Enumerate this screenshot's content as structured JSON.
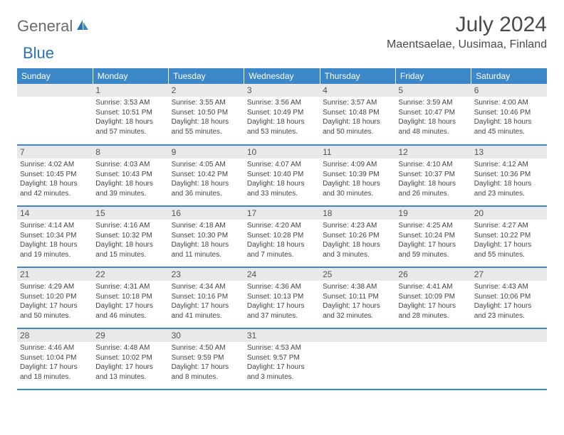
{
  "logo": {
    "gray": "General",
    "blue": "Blue"
  },
  "title": "July 2024",
  "location": "Maentsaelae, Uusimaa, Finland",
  "colors": {
    "header_bg": "#3b87c8",
    "header_text": "#ffffff",
    "daynum_bg": "#e9e9e9",
    "logo_gray": "#6a6a6a",
    "logo_blue": "#2a72b5"
  },
  "day_headers": [
    "Sunday",
    "Monday",
    "Tuesday",
    "Wednesday",
    "Thursday",
    "Friday",
    "Saturday"
  ],
  "weeks": [
    [
      {
        "n": "",
        "sr": "",
        "ss": "",
        "dl": ""
      },
      {
        "n": "1",
        "sr": "Sunrise: 3:53 AM",
        "ss": "Sunset: 10:51 PM",
        "dl": "Daylight: 18 hours and 57 minutes."
      },
      {
        "n": "2",
        "sr": "Sunrise: 3:55 AM",
        "ss": "Sunset: 10:50 PM",
        "dl": "Daylight: 18 hours and 55 minutes."
      },
      {
        "n": "3",
        "sr": "Sunrise: 3:56 AM",
        "ss": "Sunset: 10:49 PM",
        "dl": "Daylight: 18 hours and 53 minutes."
      },
      {
        "n": "4",
        "sr": "Sunrise: 3:57 AM",
        "ss": "Sunset: 10:48 PM",
        "dl": "Daylight: 18 hours and 50 minutes."
      },
      {
        "n": "5",
        "sr": "Sunrise: 3:59 AM",
        "ss": "Sunset: 10:47 PM",
        "dl": "Daylight: 18 hours and 48 minutes."
      },
      {
        "n": "6",
        "sr": "Sunrise: 4:00 AM",
        "ss": "Sunset: 10:46 PM",
        "dl": "Daylight: 18 hours and 45 minutes."
      }
    ],
    [
      {
        "n": "7",
        "sr": "Sunrise: 4:02 AM",
        "ss": "Sunset: 10:45 PM",
        "dl": "Daylight: 18 hours and 42 minutes."
      },
      {
        "n": "8",
        "sr": "Sunrise: 4:03 AM",
        "ss": "Sunset: 10:43 PM",
        "dl": "Daylight: 18 hours and 39 minutes."
      },
      {
        "n": "9",
        "sr": "Sunrise: 4:05 AM",
        "ss": "Sunset: 10:42 PM",
        "dl": "Daylight: 18 hours and 36 minutes."
      },
      {
        "n": "10",
        "sr": "Sunrise: 4:07 AM",
        "ss": "Sunset: 10:40 PM",
        "dl": "Daylight: 18 hours and 33 minutes."
      },
      {
        "n": "11",
        "sr": "Sunrise: 4:09 AM",
        "ss": "Sunset: 10:39 PM",
        "dl": "Daylight: 18 hours and 30 minutes."
      },
      {
        "n": "12",
        "sr": "Sunrise: 4:10 AM",
        "ss": "Sunset: 10:37 PM",
        "dl": "Daylight: 18 hours and 26 minutes."
      },
      {
        "n": "13",
        "sr": "Sunrise: 4:12 AM",
        "ss": "Sunset: 10:36 PM",
        "dl": "Daylight: 18 hours and 23 minutes."
      }
    ],
    [
      {
        "n": "14",
        "sr": "Sunrise: 4:14 AM",
        "ss": "Sunset: 10:34 PM",
        "dl": "Daylight: 18 hours and 19 minutes."
      },
      {
        "n": "15",
        "sr": "Sunrise: 4:16 AM",
        "ss": "Sunset: 10:32 PM",
        "dl": "Daylight: 18 hours and 15 minutes."
      },
      {
        "n": "16",
        "sr": "Sunrise: 4:18 AM",
        "ss": "Sunset: 10:30 PM",
        "dl": "Daylight: 18 hours and 11 minutes."
      },
      {
        "n": "17",
        "sr": "Sunrise: 4:20 AM",
        "ss": "Sunset: 10:28 PM",
        "dl": "Daylight: 18 hours and 7 minutes."
      },
      {
        "n": "18",
        "sr": "Sunrise: 4:23 AM",
        "ss": "Sunset: 10:26 PM",
        "dl": "Daylight: 18 hours and 3 minutes."
      },
      {
        "n": "19",
        "sr": "Sunrise: 4:25 AM",
        "ss": "Sunset: 10:24 PM",
        "dl": "Daylight: 17 hours and 59 minutes."
      },
      {
        "n": "20",
        "sr": "Sunrise: 4:27 AM",
        "ss": "Sunset: 10:22 PM",
        "dl": "Daylight: 17 hours and 55 minutes."
      }
    ],
    [
      {
        "n": "21",
        "sr": "Sunrise: 4:29 AM",
        "ss": "Sunset: 10:20 PM",
        "dl": "Daylight: 17 hours and 50 minutes."
      },
      {
        "n": "22",
        "sr": "Sunrise: 4:31 AM",
        "ss": "Sunset: 10:18 PM",
        "dl": "Daylight: 17 hours and 46 minutes."
      },
      {
        "n": "23",
        "sr": "Sunrise: 4:34 AM",
        "ss": "Sunset: 10:16 PM",
        "dl": "Daylight: 17 hours and 41 minutes."
      },
      {
        "n": "24",
        "sr": "Sunrise: 4:36 AM",
        "ss": "Sunset: 10:13 PM",
        "dl": "Daylight: 17 hours and 37 minutes."
      },
      {
        "n": "25",
        "sr": "Sunrise: 4:38 AM",
        "ss": "Sunset: 10:11 PM",
        "dl": "Daylight: 17 hours and 32 minutes."
      },
      {
        "n": "26",
        "sr": "Sunrise: 4:41 AM",
        "ss": "Sunset: 10:09 PM",
        "dl": "Daylight: 17 hours and 28 minutes."
      },
      {
        "n": "27",
        "sr": "Sunrise: 4:43 AM",
        "ss": "Sunset: 10:06 PM",
        "dl": "Daylight: 17 hours and 23 minutes."
      }
    ],
    [
      {
        "n": "28",
        "sr": "Sunrise: 4:46 AM",
        "ss": "Sunset: 10:04 PM",
        "dl": "Daylight: 17 hours and 18 minutes."
      },
      {
        "n": "29",
        "sr": "Sunrise: 4:48 AM",
        "ss": "Sunset: 10:02 PM",
        "dl": "Daylight: 17 hours and 13 minutes."
      },
      {
        "n": "30",
        "sr": "Sunrise: 4:50 AM",
        "ss": "Sunset: 9:59 PM",
        "dl": "Daylight: 17 hours and 8 minutes."
      },
      {
        "n": "31",
        "sr": "Sunrise: 4:53 AM",
        "ss": "Sunset: 9:57 PM",
        "dl": "Daylight: 17 hours and 3 minutes."
      },
      {
        "n": "",
        "sr": "",
        "ss": "",
        "dl": ""
      },
      {
        "n": "",
        "sr": "",
        "ss": "",
        "dl": ""
      },
      {
        "n": "",
        "sr": "",
        "ss": "",
        "dl": ""
      }
    ]
  ]
}
